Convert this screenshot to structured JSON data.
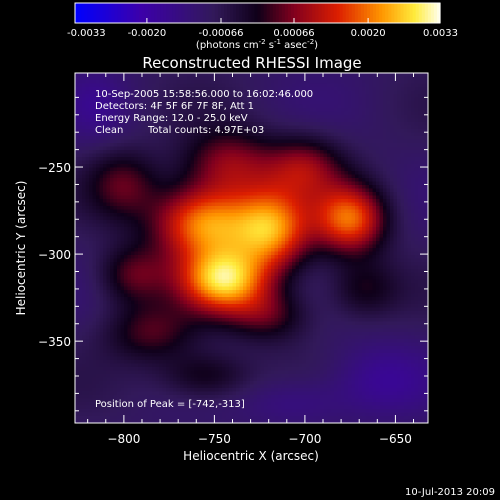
{
  "chart_data": {
    "type": "heatmap",
    "title": "Reconstructed RHESSI Image",
    "xlabel": "Heliocentric X (arcsec)",
    "ylabel": "Heliocentric Y (arcsec)",
    "xlim": [
      -827,
      -632
    ],
    "ylim": [
      -397,
      -196
    ],
    "x_ticks": [
      -800,
      -750,
      -700,
      -650
    ],
    "y_ticks": [
      -250,
      -300,
      -350
    ],
    "colorbar": {
      "ticks": [
        -0.0033,
        -0.002,
        -0.00066,
        0.00066,
        0.002,
        0.0033
      ],
      "tick_labels": [
        "-0.0033",
        "-0.0020",
        "-0.00066",
        "0.00066",
        "0.0020",
        "0.0033"
      ],
      "range": [
        -0.0033,
        0.0033
      ],
      "units_label": "(photons cm",
      "units_exp1": "-2",
      "units_mid": " s",
      "units_exp2": "-1",
      "units_mid2": " asec",
      "units_exp3": "-2",
      "units_end": ")"
    },
    "info": {
      "time": "10-Sep-2005 15:58:56.000 to 16:02:46.000",
      "detectors": "Detectors: 4F 5F 6F 7F 8F, Att 1",
      "energy": "Energy Range: 12.0 - 25.0 keV",
      "clean": "Clean",
      "counts": "Total counts: 4.97E+03"
    },
    "peak_label": "Position of Peak = [-742,-313]",
    "peak": [
      -742,
      -313
    ],
    "sources": [
      {
        "x": -745,
        "y": -315,
        "amp": 0.0033,
        "sx": 17,
        "sy": 13
      },
      {
        "x": -755,
        "y": -282,
        "amp": 0.0031,
        "sx": 20,
        "sy": 15
      },
      {
        "x": -718,
        "y": -286,
        "amp": 0.0028,
        "sx": 15,
        "sy": 17
      },
      {
        "x": -675,
        "y": -280,
        "amp": 0.0027,
        "sx": 14,
        "sy": 14
      },
      {
        "x": -742,
        "y": -248,
        "amp": 0.0016,
        "sx": 18,
        "sy": 14
      },
      {
        "x": -700,
        "y": -250,
        "amp": 0.0015,
        "sx": 15,
        "sy": 13
      },
      {
        "x": -800,
        "y": -260,
        "amp": 0.0012,
        "sx": 14,
        "sy": 14
      },
      {
        "x": -795,
        "y": -312,
        "amp": 0.0013,
        "sx": 14,
        "sy": 12
      },
      {
        "x": -785,
        "y": -345,
        "amp": 0.0012,
        "sx": 18,
        "sy": 12
      },
      {
        "x": -720,
        "y": -335,
        "amp": 0.0012,
        "sx": 16,
        "sy": 11
      },
      {
        "x": -755,
        "y": -370,
        "amp": 0.0011,
        "sx": 18,
        "sy": 10
      },
      {
        "x": -668,
        "y": -320,
        "amp": 0.001,
        "sx": 14,
        "sy": 12
      },
      {
        "x": -660,
        "y": -372,
        "amp": -0.0008,
        "sx": 20,
        "sy": 15
      },
      {
        "x": -705,
        "y": -385,
        "amp": -0.0006,
        "sx": 20,
        "sy": 10
      },
      {
        "x": -815,
        "y": -215,
        "amp": -0.0005,
        "sx": 12,
        "sy": 14
      }
    ]
  },
  "footer": {
    "timestamp": "10-Jul-2013 20:09"
  }
}
